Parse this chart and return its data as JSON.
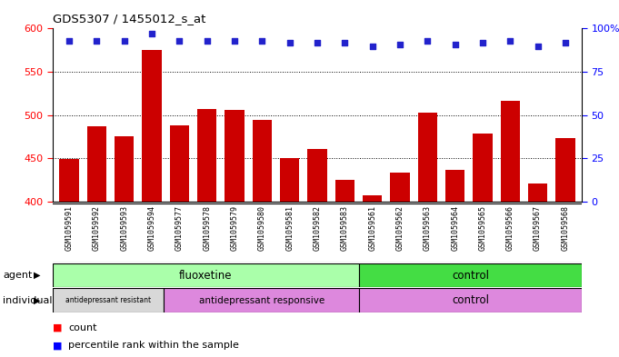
{
  "title": "GDS5307 / 1455012_s_at",
  "samples": [
    "GSM1059591",
    "GSM1059592",
    "GSM1059593",
    "GSM1059594",
    "GSM1059577",
    "GSM1059578",
    "GSM1059579",
    "GSM1059580",
    "GSM1059581",
    "GSM1059582",
    "GSM1059583",
    "GSM1059561",
    "GSM1059562",
    "GSM1059563",
    "GSM1059564",
    "GSM1059565",
    "GSM1059566",
    "GSM1059567",
    "GSM1059568"
  ],
  "counts": [
    449,
    487,
    476,
    575,
    488,
    507,
    506,
    495,
    450,
    461,
    425,
    407,
    434,
    503,
    437,
    479,
    516,
    421,
    473
  ],
  "percentiles": [
    93,
    93,
    93,
    97,
    93,
    93,
    93,
    93,
    92,
    92,
    92,
    90,
    91,
    93,
    91,
    92,
    93,
    90,
    92
  ],
  "ylim_left": [
    400,
    600
  ],
  "ylim_right": [
    0,
    100
  ],
  "yticks_left": [
    400,
    450,
    500,
    550,
    600
  ],
  "yticks_right": [
    0,
    25,
    50,
    75,
    100
  ],
  "bar_color": "#cc0000",
  "dot_color": "#2222cc",
  "background_color": "#ffffff",
  "xtick_bg": "#d8d8d8",
  "agent_fluoxetine_color": "#aaffaa",
  "agent_control_color": "#44dd44",
  "ind_resistant_color": "#d8d8d8",
  "ind_responsive_color": "#dd88dd",
  "ind_control_color": "#dd88dd"
}
